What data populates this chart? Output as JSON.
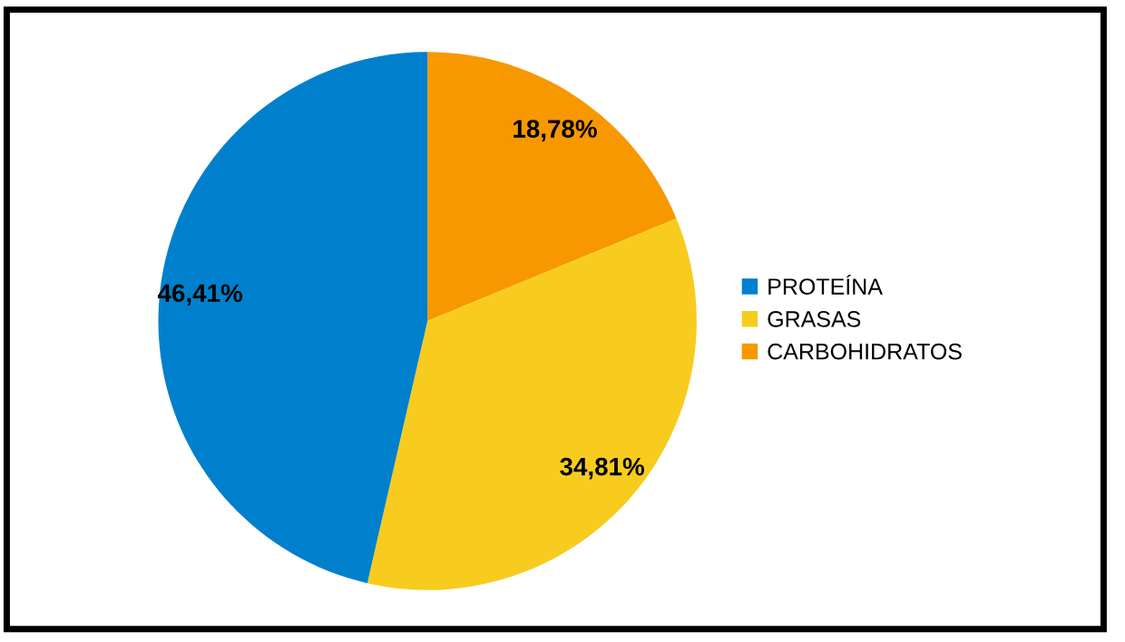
{
  "chart_data": {
    "type": "pie",
    "categories": [
      "PROTEÍNA",
      "GRASAS",
      "CARBOHIDRATOS"
    ],
    "values": [
      46.41,
      34.81,
      18.78
    ],
    "colors": [
      "#0080cc",
      "#f8cc1e",
      "#f79800"
    ],
    "value_labels": [
      "46,41%",
      "34,81%",
      "18,78%"
    ],
    "legend": "right"
  }
}
